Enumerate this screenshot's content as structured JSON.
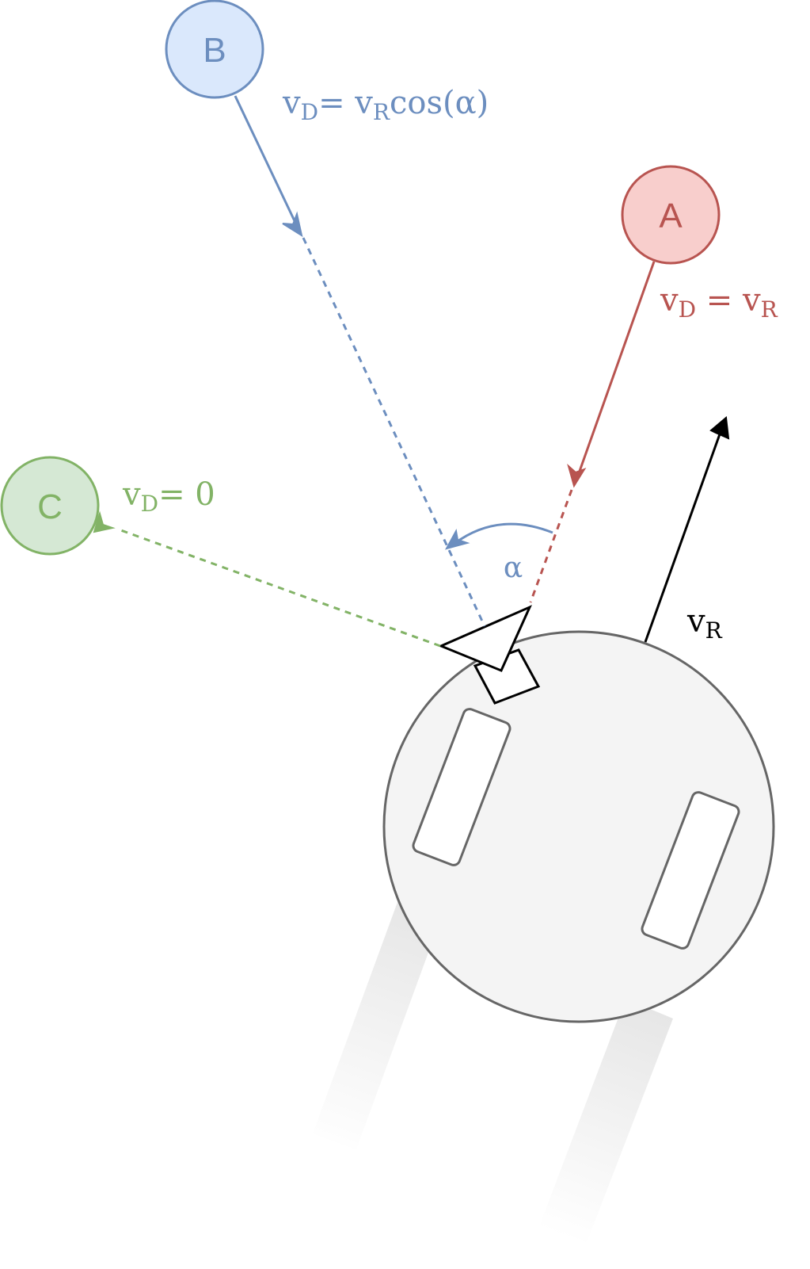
{
  "nodes": {
    "a": {
      "label": "A",
      "fill": "#f8cecc",
      "stroke": "#b85450"
    },
    "b": {
      "label": "B",
      "fill": "#dae8fc",
      "stroke": "#6c8ebf"
    },
    "c": {
      "label": "C",
      "fill": "#d5e8d4",
      "stroke": "#82b366"
    }
  },
  "equations": {
    "a": {
      "v": "v",
      "sub": "D",
      "rest": " = v",
      "sub2": "R"
    },
    "b": {
      "v": "v",
      "sub": "D",
      "rest": "= v",
      "sub2": "R",
      "tail": "cos(α)"
    },
    "c": {
      "v": "v",
      "sub": "D",
      "rest": "= 0"
    }
  },
  "robot_velocity": {
    "v": "v",
    "sub": "R"
  },
  "angle_label": "α",
  "colors": {
    "robot_body": "#f4f4f4",
    "robot_stroke": "#666666",
    "velocity_arrow": "#000000",
    "trail": "#e6e6e6"
  }
}
